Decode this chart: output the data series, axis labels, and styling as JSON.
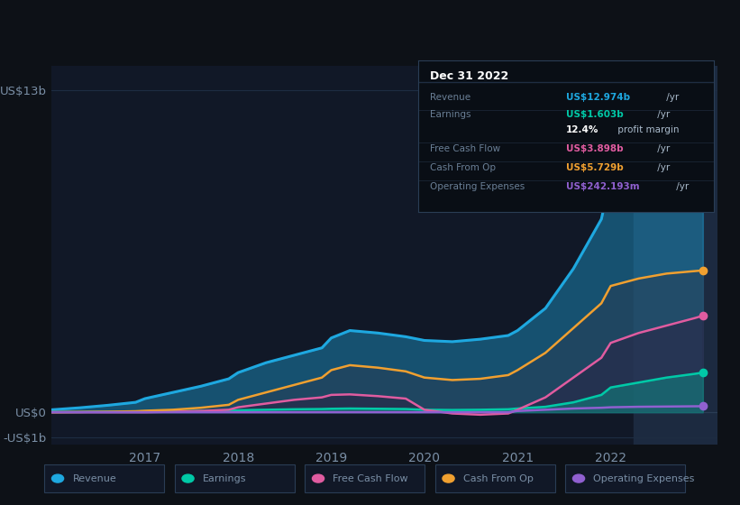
{
  "bg_color": "#0d1117",
  "plot_bg": "#111827",
  "forecast_bg": "#1a2035",
  "grid_color": "#1e2d42",
  "text_color": "#7a8fa6",
  "ylabel_top": "US$13b",
  "ylabel_mid": "US$0",
  "ylabel_bot": "-US$1b",
  "x_labels": [
    "2017",
    "2018",
    "2019",
    "2020",
    "2021",
    "2022"
  ],
  "x_ticks": [
    2017,
    2018,
    2019,
    2020,
    2021,
    2022
  ],
  "legend_items": [
    {
      "label": "Revenue",
      "color": "#1ea8e0"
    },
    {
      "label": "Earnings",
      "color": "#00c9a7"
    },
    {
      "label": "Free Cash Flow",
      "color": "#e05ca0"
    },
    {
      "label": "Cash From Op",
      "color": "#f0a030"
    },
    {
      "label": "Operating Expenses",
      "color": "#9060d0"
    }
  ],
  "tooltip": {
    "title": "Dec 31 2022",
    "rows": [
      {
        "label": "Revenue",
        "value": "US$12.974b",
        "value_color": "#1ea8e0",
        "suffix": " /yr",
        "sep": true
      },
      {
        "label": "Earnings",
        "value": "US$1.603b",
        "value_color": "#00c9a7",
        "suffix": " /yr",
        "sep": false
      },
      {
        "label": "",
        "value": "12.4%",
        "value_color": "#ffffff",
        "suffix": " profit margin",
        "sep": true
      },
      {
        "label": "Free Cash Flow",
        "value": "US$3.898b",
        "value_color": "#e05ca0",
        "suffix": " /yr",
        "sep": true
      },
      {
        "label": "Cash From Op",
        "value": "US$5.729b",
        "value_color": "#f0a030",
        "suffix": " /yr",
        "sep": true
      },
      {
        "label": "Operating Expenses",
        "value": "US$242.193m",
        "value_color": "#9060d0",
        "suffix": " /yr",
        "sep": false
      }
    ]
  },
  "series": {
    "t": [
      2016.0,
      2016.3,
      2016.6,
      2016.9,
      2017.0,
      2017.3,
      2017.6,
      2017.9,
      2018.0,
      2018.3,
      2018.6,
      2018.9,
      2019.0,
      2019.2,
      2019.5,
      2019.8,
      2020.0,
      2020.3,
      2020.6,
      2020.9,
      2021.0,
      2021.3,
      2021.6,
      2021.9,
      2022.0,
      2022.3,
      2022.6,
      2022.9,
      2022.99
    ],
    "revenue": [
      0.1,
      0.18,
      0.28,
      0.4,
      0.55,
      0.8,
      1.05,
      1.35,
      1.6,
      2.0,
      2.3,
      2.6,
      3.0,
      3.3,
      3.2,
      3.05,
      2.9,
      2.85,
      2.95,
      3.1,
      3.3,
      4.2,
      5.8,
      7.8,
      9.5,
      10.8,
      11.8,
      12.7,
      12.974
    ],
    "earnings": [
      0.01,
      0.01,
      0.02,
      0.02,
      0.03,
      0.04,
      0.05,
      0.06,
      0.08,
      0.1,
      0.12,
      0.13,
      0.14,
      0.15,
      0.14,
      0.13,
      0.1,
      0.09,
      0.1,
      0.12,
      0.15,
      0.22,
      0.4,
      0.7,
      1.0,
      1.2,
      1.4,
      1.55,
      1.603
    ],
    "free_cash_flow": [
      0.0,
      0.0,
      0.0,
      0.0,
      0.0,
      0.02,
      0.05,
      0.1,
      0.2,
      0.35,
      0.5,
      0.6,
      0.7,
      0.72,
      0.65,
      0.55,
      0.1,
      -0.05,
      -0.1,
      -0.05,
      0.1,
      0.6,
      1.4,
      2.2,
      2.8,
      3.2,
      3.5,
      3.8,
      3.898
    ],
    "cash_from_op": [
      0.0,
      0.01,
      0.02,
      0.04,
      0.06,
      0.1,
      0.18,
      0.3,
      0.5,
      0.8,
      1.1,
      1.4,
      1.7,
      1.9,
      1.8,
      1.65,
      1.4,
      1.3,
      1.35,
      1.5,
      1.7,
      2.4,
      3.4,
      4.4,
      5.1,
      5.4,
      5.6,
      5.7,
      5.729
    ],
    "op_expenses": [
      0.0,
      0.0,
      0.0,
      0.0,
      0.0,
      0.0,
      0.0,
      0.0,
      0.0,
      0.0,
      0.0,
      0.0,
      0.0,
      0.0,
      0.0,
      0.0,
      0.0,
      0.0,
      0.0,
      0.0,
      0.05,
      0.1,
      0.15,
      0.18,
      0.2,
      0.22,
      0.23,
      0.24,
      0.242
    ]
  },
  "forecast_start": 2022.25,
  "xlim": [
    2016.0,
    2023.15
  ],
  "ylim": [
    -1.3,
    14.0
  ],
  "yticks": [
    -1,
    0,
    13
  ],
  "figsize": [
    8.21,
    5.6
  ],
  "dpi": 100
}
